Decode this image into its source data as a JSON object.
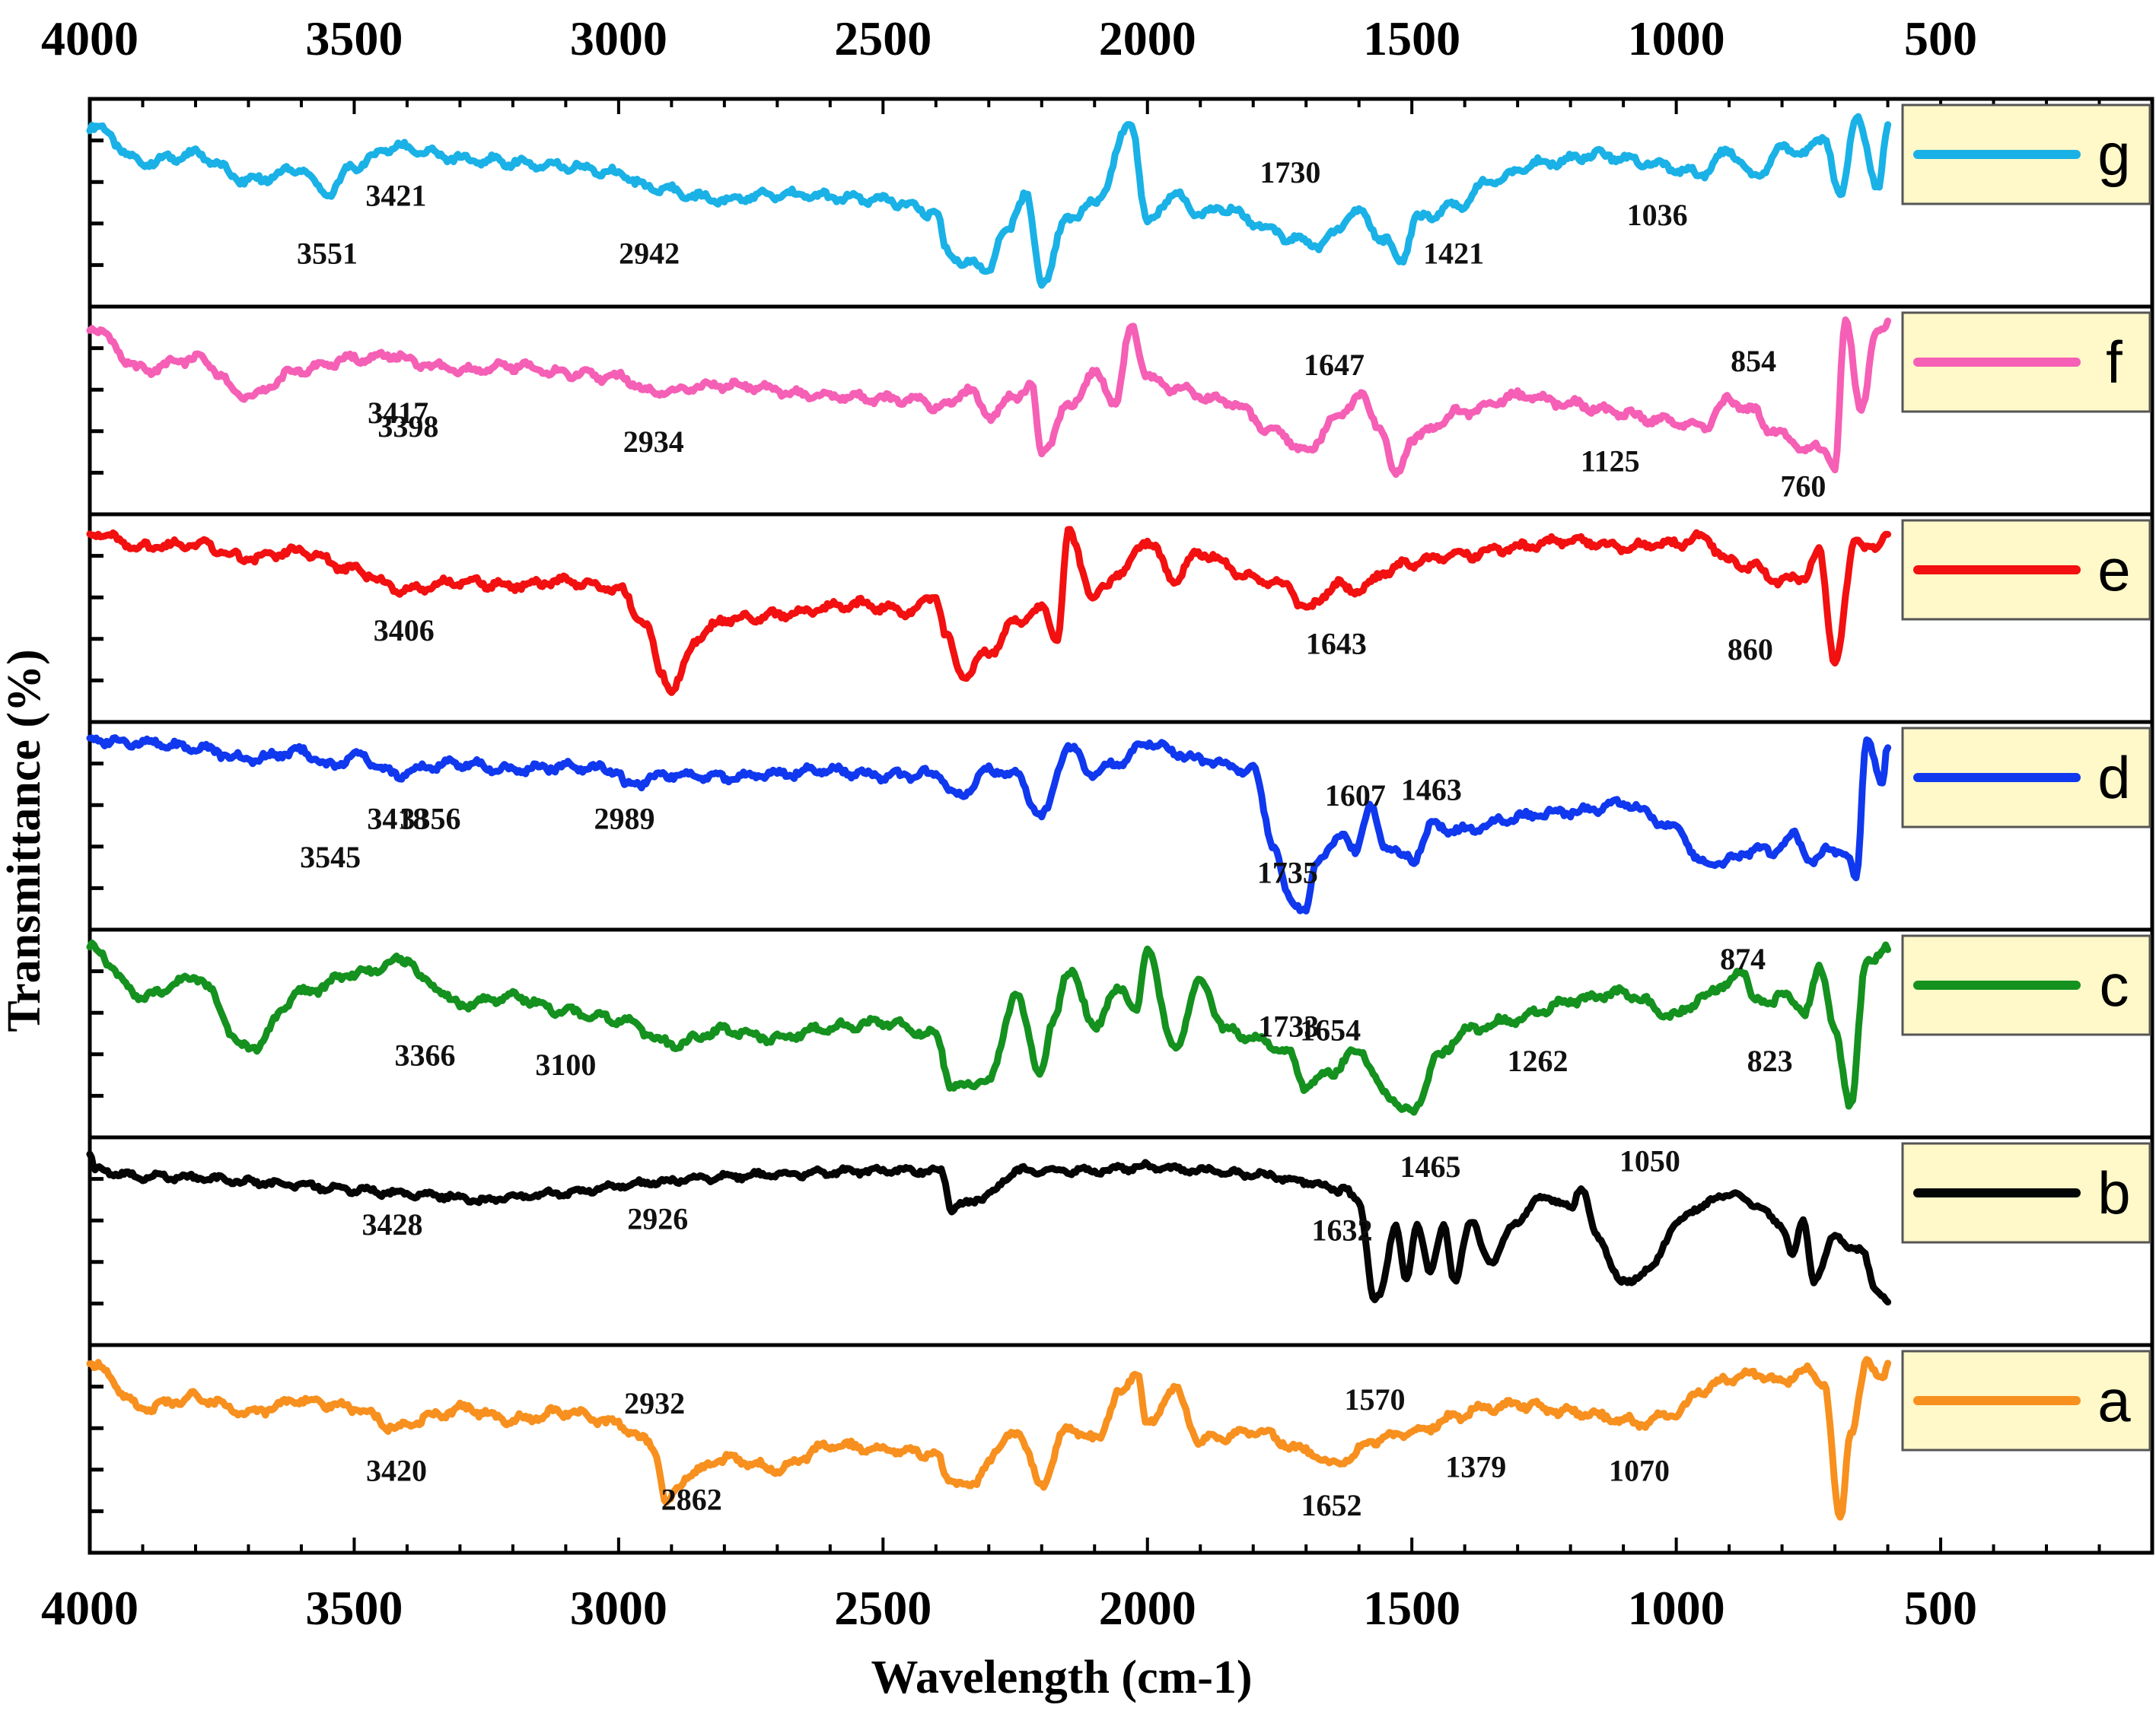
{
  "chart_data": {
    "type": "line",
    "title": "",
    "xlabel": "Wavelength (cm-1)",
    "ylabel": "Transmittance (%)",
    "xlim": [
      4000,
      100
    ],
    "x_ticks": [
      "4000",
      "3500",
      "3000",
      "2500",
      "2000",
      "1500",
      "1000",
      "500"
    ],
    "grid": false,
    "legend_position": "right of each panel",
    "series": [
      {
        "name": "g",
        "color": "#1ab1e6",
        "x": [
          4000,
          3900,
          3800,
          3700,
          3600,
          3551,
          3500,
          3421,
          3300,
          3200,
          3100,
          3000,
          2942,
          2800,
          2700,
          2500,
          2400,
          2380,
          2340,
          2300,
          2270,
          2230,
          2200,
          2150,
          2100,
          2030,
          2000,
          1950,
          1900,
          1850,
          1800,
          1730,
          1680,
          1600,
          1550,
          1520,
          1490,
          1421,
          1350,
          1250,
          1150,
          1050,
          1036,
          950,
          900,
          850,
          800,
          760,
          720,
          690,
          660,
          620,
          600
        ],
        "y": [
          0.92,
          0.72,
          0.76,
          0.62,
          0.68,
          0.55,
          0.7,
          0.8,
          0.74,
          0.72,
          0.7,
          0.66,
          0.58,
          0.52,
          0.55,
          0.52,
          0.45,
          0.25,
          0.18,
          0.16,
          0.34,
          0.55,
          0.08,
          0.42,
          0.5,
          0.92,
          0.4,
          0.55,
          0.45,
          0.48,
          0.4,
          0.32,
          0.28,
          0.45,
          0.3,
          0.2,
          0.42,
          0.48,
          0.62,
          0.72,
          0.76,
          0.72,
          0.7,
          0.66,
          0.78,
          0.64,
          0.8,
          0.76,
          0.86,
          0.52,
          0.98,
          0.58,
          0.92
        ]
      },
      {
        "name": "f",
        "color": "#f55fb5",
        "x": [
          4000,
          3900,
          3800,
          3700,
          3600,
          3500,
          3417,
          3398,
          3300,
          3200,
          3100,
          3000,
          2934,
          2800,
          2600,
          2450,
          2380,
          2340,
          2300,
          2250,
          2220,
          2200,
          2150,
          2100,
          2060,
          2030,
          2000,
          1950,
          1850,
          1750,
          1700,
          1647,
          1600,
          1560,
          1530,
          1500,
          1400,
          1300,
          1200,
          1125,
          1050,
          950,
          900,
          854,
          820,
          780,
          760,
          720,
          700,
          680,
          650,
          620,
          600
        ],
        "y": [
          0.95,
          0.72,
          0.78,
          0.58,
          0.72,
          0.78,
          0.8,
          0.76,
          0.72,
          0.74,
          0.7,
          0.68,
          0.6,
          0.64,
          0.58,
          0.56,
          0.52,
          0.62,
          0.48,
          0.58,
          0.64,
          0.28,
          0.52,
          0.7,
          0.55,
          0.95,
          0.68,
          0.62,
          0.55,
          0.38,
          0.28,
          0.45,
          0.58,
          0.42,
          0.15,
          0.36,
          0.5,
          0.58,
          0.54,
          0.5,
          0.46,
          0.42,
          0.56,
          0.5,
          0.4,
          0.34,
          0.3,
          0.3,
          0.2,
          0.98,
          0.52,
          0.92,
          0.98
        ]
      },
      {
        "name": "e",
        "color": "#f21010",
        "x": [
          4000,
          3900,
          3800,
          3700,
          3600,
          3500,
          3406,
          3300,
          3200,
          3100,
          3000,
          2950,
          2920,
          2900,
          2850,
          2800,
          2700,
          2550,
          2450,
          2400,
          2380,
          2350,
          2300,
          2250,
          2200,
          2170,
          2150,
          2100,
          2050,
          2000,
          1950,
          1900,
          1800,
          1740,
          1700,
          1643,
          1600,
          1550,
          1500,
          1400,
          1300,
          1200,
          1100,
          1000,
          950,
          900,
          860,
          800,
          760,
          730,
          700,
          660,
          620,
          600
        ],
        "y": [
          0.96,
          0.88,
          0.9,
          0.82,
          0.86,
          0.76,
          0.65,
          0.7,
          0.68,
          0.7,
          0.66,
          0.48,
          0.22,
          0.12,
          0.4,
          0.5,
          0.52,
          0.58,
          0.54,
          0.62,
          0.4,
          0.2,
          0.32,
          0.48,
          0.55,
          0.4,
          0.95,
          0.62,
          0.75,
          0.92,
          0.72,
          0.85,
          0.72,
          0.68,
          0.55,
          0.68,
          0.65,
          0.75,
          0.8,
          0.84,
          0.88,
          0.92,
          0.88,
          0.9,
          0.94,
          0.8,
          0.78,
          0.7,
          0.72,
          0.85,
          0.28,
          0.92,
          0.86,
          0.95
        ]
      },
      {
        "name": "d",
        "color": "#1038ee",
        "x": [
          4000,
          3900,
          3800,
          3700,
          3600,
          3545,
          3500,
          3418,
          3356,
          3300,
          3200,
          3100,
          3000,
          2989,
          2900,
          2800,
          2700,
          2600,
          2500,
          2400,
          2360,
          2300,
          2250,
          2200,
          2150,
          2100,
          2050,
          2000,
          1950,
          1900,
          1800,
          1760,
          1735,
          1700,
          1680,
          1640,
          1607,
          1580,
          1550,
          1500,
          1463,
          1400,
          1300,
          1200,
          1100,
          1000,
          950,
          900,
          850,
          820,
          780,
          740,
          710,
          680,
          660,
          640,
          610,
          600
        ],
        "y": [
          0.96,
          0.95,
          0.92,
          0.86,
          0.9,
          0.82,
          0.88,
          0.78,
          0.82,
          0.84,
          0.8,
          0.82,
          0.8,
          0.72,
          0.78,
          0.76,
          0.78,
          0.8,
          0.77,
          0.78,
          0.66,
          0.8,
          0.78,
          0.55,
          0.92,
          0.78,
          0.85,
          0.95,
          0.9,
          0.85,
          0.8,
          0.4,
          0.12,
          0.06,
          0.3,
          0.45,
          0.38,
          0.6,
          0.4,
          0.32,
          0.5,
          0.48,
          0.55,
          0.58,
          0.62,
          0.5,
          0.3,
          0.32,
          0.38,
          0.36,
          0.45,
          0.32,
          0.38,
          0.36,
          0.22,
          0.98,
          0.72,
          0.92
        ]
      },
      {
        "name": "c",
        "color": "#14911e",
        "x": [
          4000,
          3900,
          3800,
          3700,
          3600,
          3500,
          3400,
          3366,
          3300,
          3200,
          3100,
          3000,
          2900,
          2800,
          2700,
          2600,
          2500,
          2400,
          2370,
          2300,
          2250,
          2200,
          2180,
          2150,
          2100,
          2050,
          2020,
          2000,
          1950,
          1900,
          1850,
          1800,
          1733,
          1700,
          1654,
          1600,
          1550,
          1500,
          1450,
          1400,
          1300,
          1262,
          1200,
          1100,
          1000,
          950,
          900,
          874,
          850,
          823,
          800,
          760,
          730,
          700,
          670,
          640,
          600
        ],
        "y": [
          0.96,
          0.7,
          0.8,
          0.42,
          0.72,
          0.82,
          0.9,
          0.78,
          0.66,
          0.7,
          0.62,
          0.58,
          0.45,
          0.52,
          0.48,
          0.54,
          0.56,
          0.5,
          0.22,
          0.25,
          0.7,
          0.3,
          0.55,
          0.85,
          0.55,
          0.75,
          0.62,
          0.96,
          0.42,
          0.78,
          0.52,
          0.48,
          0.4,
          0.22,
          0.3,
          0.42,
          0.18,
          0.08,
          0.38,
          0.52,
          0.58,
          0.62,
          0.68,
          0.72,
          0.6,
          0.7,
          0.78,
          0.82,
          0.7,
          0.64,
          0.74,
          0.6,
          0.86,
          0.52,
          0.12,
          0.9,
          0.95
        ]
      },
      {
        "name": "b",
        "color": "#050505",
        "x": [
          4000,
          3990,
          3900,
          3800,
          3700,
          3600,
          3500,
          3428,
          3350,
          3260,
          3200,
          3100,
          3000,
          2926,
          2850,
          2700,
          2500,
          2390,
          2370,
          2350,
          2300,
          2250,
          2100,
          2000,
          1900,
          1800,
          1700,
          1640,
          1632,
          1600,
          1570,
          1560,
          1530,
          1510,
          1490,
          1465,
          1440,
          1420,
          1390,
          1350,
          1300,
          1250,
          1200,
          1180,
          1150,
          1100,
          1050,
          1000,
          950,
          900,
          850,
          800,
          780,
          760,
          740,
          700,
          650,
          620,
          600
        ],
        "y": [
          0.98,
          0.88,
          0.85,
          0.84,
          0.82,
          0.8,
          0.78,
          0.76,
          0.75,
          0.72,
          0.74,
          0.76,
          0.8,
          0.82,
          0.84,
          0.86,
          0.88,
          0.88,
          0.68,
          0.7,
          0.75,
          0.88,
          0.88,
          0.9,
          0.88,
          0.86,
          0.82,
          0.78,
          0.8,
          0.7,
          0.2,
          0.22,
          0.6,
          0.3,
          0.58,
          0.35,
          0.58,
          0.3,
          0.6,
          0.4,
          0.62,
          0.74,
          0.68,
          0.8,
          0.52,
          0.28,
          0.35,
          0.6,
          0.7,
          0.76,
          0.7,
          0.58,
          0.45,
          0.6,
          0.3,
          0.52,
          0.45,
          0.25,
          0.18
        ]
      },
      {
        "name": "a",
        "color": "#f7901e",
        "x": [
          4000,
          3900,
          3800,
          3700,
          3600,
          3500,
          3420,
          3350,
          3300,
          3200,
          3100,
          3000,
          2950,
          2932,
          2910,
          2862,
          2800,
          2700,
          2600,
          2500,
          2400,
          2380,
          2330,
          2300,
          2250,
          2200,
          2150,
          2100,
          2050,
          2020,
          2000,
          1950,
          1900,
          1800,
          1700,
          1652,
          1620,
          1570,
          1500,
          1400,
          1379,
          1300,
          1200,
          1100,
          1070,
          1000,
          950,
          900,
          850,
          800,
          760,
          720,
          690,
          670,
          640,
          610,
          600
        ],
        "y": [
          0.96,
          0.72,
          0.78,
          0.7,
          0.76,
          0.72,
          0.62,
          0.68,
          0.72,
          0.66,
          0.7,
          0.64,
          0.55,
          0.5,
          0.22,
          0.38,
          0.45,
          0.4,
          0.52,
          0.5,
          0.48,
          0.35,
          0.3,
          0.45,
          0.6,
          0.32,
          0.62,
          0.55,
          0.8,
          0.92,
          0.62,
          0.82,
          0.55,
          0.6,
          0.5,
          0.42,
          0.46,
          0.55,
          0.6,
          0.68,
          0.72,
          0.74,
          0.7,
          0.66,
          0.64,
          0.7,
          0.82,
          0.88,
          0.9,
          0.86,
          0.92,
          0.85,
          0.12,
          0.6,
          0.95,
          0.9,
          0.96
        ]
      }
    ],
    "annotations": [
      {
        "series": "g",
        "label": "3551",
        "x": 3551,
        "y": 0.2
      },
      {
        "series": "g",
        "label": "3421",
        "x": 3421,
        "y": 0.5
      },
      {
        "series": "g",
        "label": "2942",
        "x": 2942,
        "y": 0.2
      },
      {
        "series": "g",
        "label": "1730",
        "x": 1730,
        "y": 0.62
      },
      {
        "series": "g",
        "label": "1421",
        "x": 1421,
        "y": 0.2
      },
      {
        "series": "g",
        "label": "1036",
        "x": 1036,
        "y": 0.4
      },
      {
        "series": "f",
        "label": "3417",
        "x": 3417,
        "y": 0.45
      },
      {
        "series": "f",
        "label": "3398",
        "x": 3398,
        "y": 0.38
      },
      {
        "series": "f",
        "label": "2934",
        "x": 2934,
        "y": 0.3
      },
      {
        "series": "f",
        "label": "1647",
        "x": 1647,
        "y": 0.7
      },
      {
        "series": "f",
        "label": "1125",
        "x": 1125,
        "y": 0.2
      },
      {
        "series": "f",
        "label": "854",
        "x": 854,
        "y": 0.72
      },
      {
        "series": "f",
        "label": "760",
        "x": 760,
        "y": 0.07
      },
      {
        "series": "e",
        "label": "3406",
        "x": 3406,
        "y": 0.4
      },
      {
        "series": "e",
        "label": "1643",
        "x": 1643,
        "y": 0.33
      },
      {
        "series": "e",
        "label": "860",
        "x": 860,
        "y": 0.3
      },
      {
        "series": "d",
        "label": "3545",
        "x": 3545,
        "y": 0.3
      },
      {
        "series": "d",
        "label": "3418",
        "x": 3418,
        "y": 0.5
      },
      {
        "series": "d",
        "label": "3356",
        "x": 3356,
        "y": 0.5
      },
      {
        "series": "d",
        "label": "2989",
        "x": 2989,
        "y": 0.5
      },
      {
        "series": "d",
        "label": "1607",
        "x": 1607,
        "y": 0.62
      },
      {
        "series": "d",
        "label": "1463",
        "x": 1463,
        "y": 0.65
      },
      {
        "series": "d",
        "label": "1735",
        "x": 1735,
        "y": 0.22
      },
      {
        "series": "c",
        "label": "3366",
        "x": 3366,
        "y": 0.35
      },
      {
        "series": "c",
        "label": "3100",
        "x": 3100,
        "y": 0.3
      },
      {
        "series": "c",
        "label": "1733",
        "x": 1733,
        "y": 0.5
      },
      {
        "series": "c",
        "label": "1654",
        "x": 1654,
        "y": 0.48
      },
      {
        "series": "c",
        "label": "1262",
        "x": 1262,
        "y": 0.32
      },
      {
        "series": "c",
        "label": "874",
        "x": 874,
        "y": 0.85
      },
      {
        "series": "c",
        "label": "823",
        "x": 823,
        "y": 0.32
      },
      {
        "series": "b",
        "label": "3428",
        "x": 3428,
        "y": 0.55
      },
      {
        "series": "b",
        "label": "2926",
        "x": 2926,
        "y": 0.58
      },
      {
        "series": "b",
        "label": "1632",
        "x": 1632,
        "y": 0.52
      },
      {
        "series": "b",
        "label": "1465",
        "x": 1465,
        "y": 0.85
      },
      {
        "series": "b",
        "label": "1050",
        "x": 1050,
        "y": 0.88
      },
      {
        "series": "a",
        "label": "3420",
        "x": 3420,
        "y": 0.35
      },
      {
        "series": "a",
        "label": "2932",
        "x": 2932,
        "y": 0.7
      },
      {
        "series": "a",
        "label": "2862",
        "x": 2862,
        "y": 0.2
      },
      {
        "series": "a",
        "label": "1570",
        "x": 1570,
        "y": 0.72
      },
      {
        "series": "a",
        "label": "1379",
        "x": 1379,
        "y": 0.37
      },
      {
        "series": "a",
        "label": "1652",
        "x": 1652,
        "y": 0.17
      },
      {
        "series": "a",
        "label": "1070",
        "x": 1070,
        "y": 0.35
      }
    ]
  }
}
